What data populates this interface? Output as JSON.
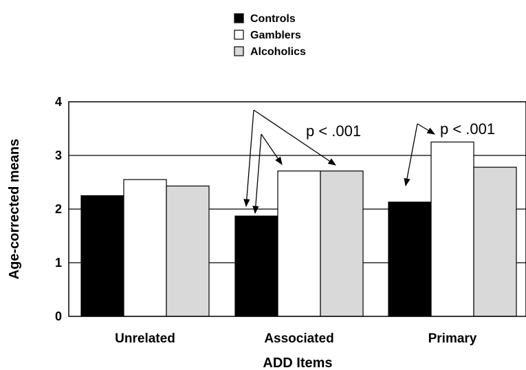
{
  "chart_data": {
    "type": "bar",
    "categories": [
      "Unrelated",
      "Associated",
      "Primary"
    ],
    "series": [
      {
        "name": "Controls",
        "values": [
          2.25,
          1.87,
          2.13
        ],
        "color": "#000000"
      },
      {
        "name": "Gamblers",
        "values": [
          2.55,
          2.71,
          3.25
        ],
        "color": "#ffffff"
      },
      {
        "name": "Alcoholics",
        "values": [
          2.43,
          2.71,
          2.78
        ],
        "color": "#d9d9d9"
      }
    ],
    "xlabel": "ADD Items",
    "ylabel": "Age-corrected means",
    "ylim": [
      0,
      4
    ],
    "yticks": [
      "0",
      "1",
      "2",
      "3",
      "4"
    ],
    "grid": true,
    "legend_position": "top-center",
    "annotations": [
      {
        "text": "p < .001",
        "category": "Associated"
      },
      {
        "text": "p < .001",
        "category": "Primary"
      }
    ]
  }
}
